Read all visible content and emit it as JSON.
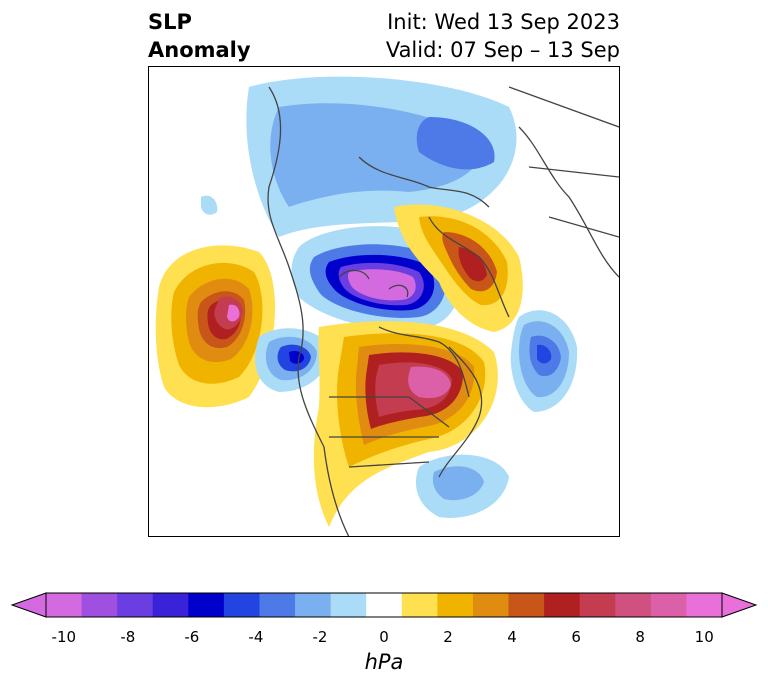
{
  "title": {
    "left_line1": "SLP",
    "left_line2": "Anomaly",
    "right_line1": "Init: Wed 13 Sep 2023",
    "right_line2": "Valid: 07 Sep – 13 Sep"
  },
  "colorbar": {
    "label": "hPa",
    "ticks": [
      "-10",
      "-8",
      "-6",
      "-4",
      "-2",
      "0",
      "2",
      "4",
      "6",
      "8",
      "10"
    ],
    "colors": [
      "#d36ae0",
      "#a050e0",
      "#6a3ee0",
      "#3a22d8",
      "#0000cc",
      "#2244e0",
      "#4e7ae8",
      "#7ab0f0",
      "#aadcf8",
      "#ffffff",
      "#ffe050",
      "#f0b400",
      "#e08c10",
      "#c85618",
      "#b02020",
      "#c43c50",
      "#d05080",
      "#dc60a8",
      "#e870d8"
    ],
    "extend": "both",
    "range": [
      -10,
      10
    ],
    "step": 1
  }
}
